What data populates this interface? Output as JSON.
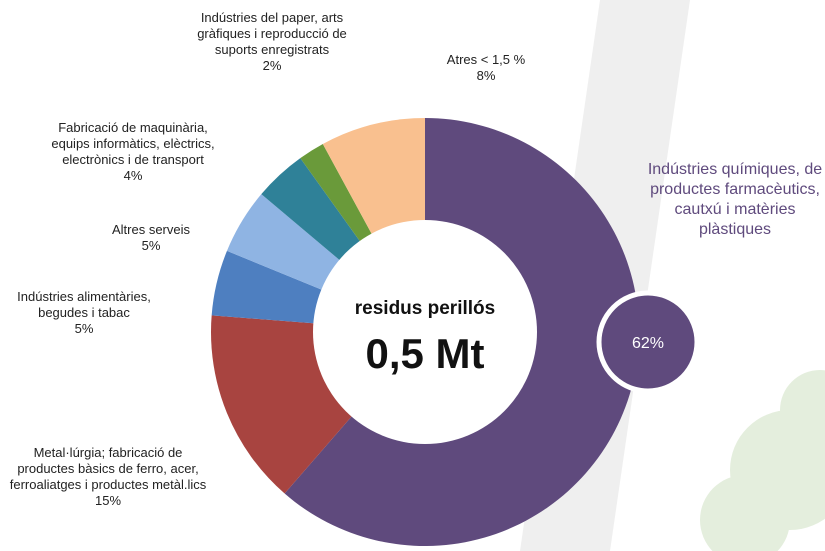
{
  "chart_data": {
    "type": "pie",
    "categories": [
      "Indústries químiques, de productes farmacèutics, cautxú i matèries plàstiques",
      "Metal·lúrgia; fabricació de productes bàsics de ferro, acer, ferroaliatges i productes metàl.lics",
      "Indústries alimentàries, begudes i tabac",
      "Altres serveis",
      "Fabricació de maquinària, equips informàtics, elèctrics, electrònics i de transport",
      "Indústries del paper, arts gràfiques i reproducció de suports enregistrats",
      "Atres < 1,5 %"
    ],
    "values": [
      62,
      15,
      5,
      5,
      4,
      2,
      8
    ],
    "value_labels": [
      "62%",
      "15%",
      "5%",
      "5%",
      "4%",
      "2%",
      "8%"
    ],
    "colors": [
      "#5f4a7d",
      "#a84440",
      "#4e7fc0",
      "#8fb4e3",
      "#2f8198",
      "#6a9a3a",
      "#f9c08f"
    ],
    "annotations": [
      "residus perillós",
      "0,5 Mt"
    ]
  }
}
